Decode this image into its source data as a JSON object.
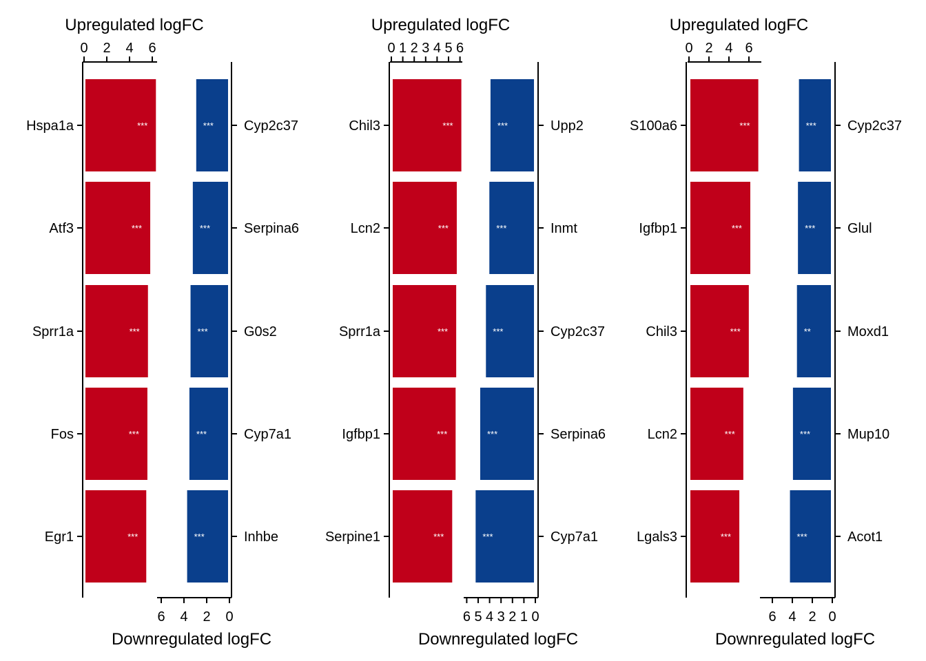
{
  "colors": {
    "up": "#C0001A",
    "down": "#0A3F8C",
    "sig_text": "#ffffff"
  },
  "chart_data": [
    {
      "type": "bar",
      "top_axis_label": "Upregulated logFC",
      "bottom_axis_label": "Downregulated logFC",
      "up": {
        "ticks": [
          0,
          2,
          4,
          6
        ],
        "tick_labels": [
          "0",
          "2",
          "4",
          "6"
        ],
        "genes": [
          "Hspa1a",
          "Atf3",
          "Sprr1a",
          "Fos",
          "Egr1"
        ],
        "values": [
          6.2,
          5.7,
          5.5,
          5.45,
          5.35
        ],
        "significance": [
          "***",
          "***",
          "***",
          "***",
          "***"
        ]
      },
      "down": {
        "ticks": [
          6,
          4,
          2,
          0
        ],
        "tick_labels": [
          "6",
          "4",
          "2",
          "0"
        ],
        "genes": [
          "Cyp2c37",
          "Serpina6",
          "G0s2",
          "Cyp7a1",
          "Inhbe"
        ],
        "values": [
          2.8,
          3.1,
          3.3,
          3.4,
          3.6
        ],
        "significance": [
          "***",
          "***",
          "***",
          "***",
          "***"
        ]
      }
    },
    {
      "type": "bar",
      "top_axis_label": "Upregulated logFC",
      "bottom_axis_label": "Downregulated logFC",
      "up": {
        "ticks": [
          0,
          1,
          2,
          3,
          4,
          5,
          6
        ],
        "tick_labels": [
          "0",
          "1",
          "2",
          "3",
          "4",
          "5",
          "6"
        ],
        "genes": [
          "Chil3",
          "Lcn2",
          "Sprr1a",
          "Igfbp1",
          "Serpine1"
        ],
        "values": [
          6.0,
          5.6,
          5.55,
          5.5,
          5.2
        ],
        "significance": [
          "***",
          "***",
          "***",
          "***",
          "***"
        ]
      },
      "down": {
        "ticks": [
          6,
          5,
          4,
          3,
          2,
          1,
          0
        ],
        "tick_labels": [
          "6",
          "5",
          "4",
          "3",
          "2",
          "1",
          "0"
        ],
        "genes": [
          "Upp2",
          "Inmt",
          "Cyp2c37",
          "Serpina6",
          "Cyp7a1"
        ],
        "values": [
          3.8,
          3.9,
          4.2,
          4.7,
          5.1
        ],
        "significance": [
          "***",
          "***",
          "***",
          "***",
          "***"
        ]
      }
    },
    {
      "type": "bar",
      "top_axis_label": "Upregulated logFC",
      "bottom_axis_label": "Downregulated logFC",
      "up": {
        "ticks": [
          0,
          2,
          4,
          6
        ],
        "tick_labels": [
          "0",
          "2",
          "4",
          "6"
        ],
        "genes": [
          "S100a6",
          "Igfbp1",
          "Chil3",
          "Lcn2",
          "Lgals3"
        ],
        "values": [
          6.8,
          6.0,
          5.85,
          5.3,
          4.9
        ],
        "significance": [
          "***",
          "***",
          "***",
          "***",
          "***"
        ]
      },
      "down": {
        "ticks": [
          6,
          4,
          2,
          0
        ],
        "tick_labels": [
          "6",
          "4",
          "2",
          "0"
        ],
        "genes": [
          "Cyp2c37",
          "Glul",
          "Moxd1",
          "Mup10",
          "Acot1"
        ],
        "values": [
          3.2,
          3.3,
          3.4,
          3.8,
          4.1
        ],
        "significance": [
          "***",
          "***",
          "**",
          "***",
          "***"
        ]
      }
    }
  ]
}
